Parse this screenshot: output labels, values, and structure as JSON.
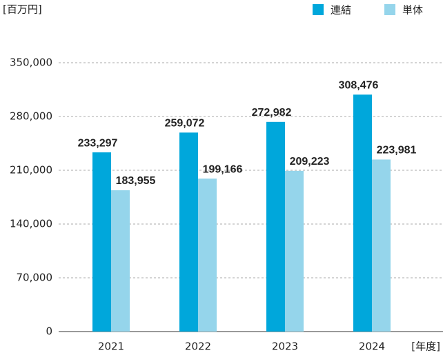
{
  "chart_data": {
    "type": "bar",
    "y_unit": "[百万円]",
    "x_unit": "[年度]",
    "categories": [
      "2021",
      "2022",
      "2023",
      "2024"
    ],
    "series": [
      {
        "name": "連結",
        "color": "#00a7db",
        "values": [
          233297,
          259072,
          272982,
          308476
        ],
        "value_labels": [
          "233,297",
          "259,072",
          "272,982",
          "308,476"
        ]
      },
      {
        "name": "単体",
        "color": "#95d5eb",
        "values": [
          183955,
          199166,
          209223,
          223981
        ],
        "value_labels": [
          "183,955",
          "199,166",
          "209,223",
          "223,981"
        ]
      }
    ],
    "ylim": [
      0,
      350000
    ],
    "yticks": [
      0,
      {
        "value": 70000,
        "label": "70,000"
      },
      {
        "value": 140000,
        "label": "140,000"
      },
      {
        "value": 210000,
        "label": "210,000"
      },
      {
        "value": 280000,
        "label": "280,000"
      },
      {
        "value": 350000,
        "label": "350,000"
      }
    ],
    "grid": true,
    "legend": "top-right"
  }
}
